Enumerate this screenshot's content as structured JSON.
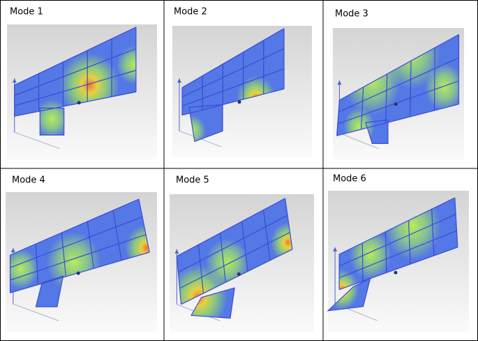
{
  "panels": [
    {
      "label": "Mode 1"
    },
    {
      "label": "Mode 2"
    },
    {
      "label": "Mode 3"
    },
    {
      "label": "Mode 4"
    },
    {
      "label": "Mode 5"
    },
    {
      "label": "Mode 6"
    }
  ]
}
